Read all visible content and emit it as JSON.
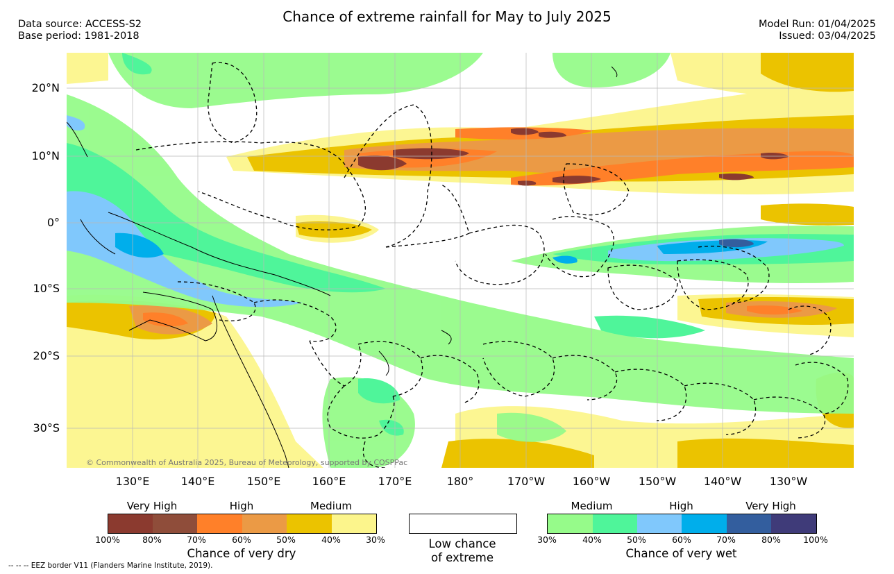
{
  "header": {
    "title": "Chance of extreme rainfall for May to July 2025",
    "data_source": "Data source: ACCESS-S2",
    "base_period": "Base period: 1981-2018",
    "model_run": "Model Run: 01/04/2025",
    "issued": "Issued: 03/04/2025"
  },
  "map": {
    "lat_labels": [
      "20°N",
      "10°N",
      "0°",
      "10°S",
      "20°S",
      "30°S"
    ],
    "lon_labels": [
      "130°E",
      "140°E",
      "150°E",
      "160°E",
      "170°E",
      "180°",
      "170°W",
      "160°W",
      "150°W",
      "140°W",
      "130°W"
    ],
    "copyright": "© Commonwealth of Australia 2025, Bureau of Meteorology, supported by COSPPac"
  },
  "legend": {
    "dry": {
      "categories": [
        "Very High",
        "High",
        "Medium"
      ],
      "ticks": [
        "100%",
        "80%",
        "70%",
        "60%",
        "50%",
        "40%",
        "30%"
      ],
      "colors": [
        "#8b3a2f",
        "#8f4d3a",
        "#ff8029",
        "#eb9a45",
        "#ebc300",
        "#fcf58c"
      ],
      "title": "Chance of very dry"
    },
    "low": {
      "line1": "Low chance",
      "line2": "of extreme"
    },
    "wet": {
      "categories": [
        "Medium",
        "High",
        "Very High"
      ],
      "ticks": [
        "30%",
        "40%",
        "50%",
        "60%",
        "70%",
        "80%",
        "100%"
      ],
      "colors": [
        "#96fb8a",
        "#4ff59a",
        "#80c8fc",
        "#00aeeb",
        "#335e9e",
        "#3f3b79"
      ],
      "title": "Chance of very wet"
    }
  },
  "footer": {
    "eez_note": "--  --  -- EEZ border V11 (Flanders Marine Institute, 2019)."
  }
}
